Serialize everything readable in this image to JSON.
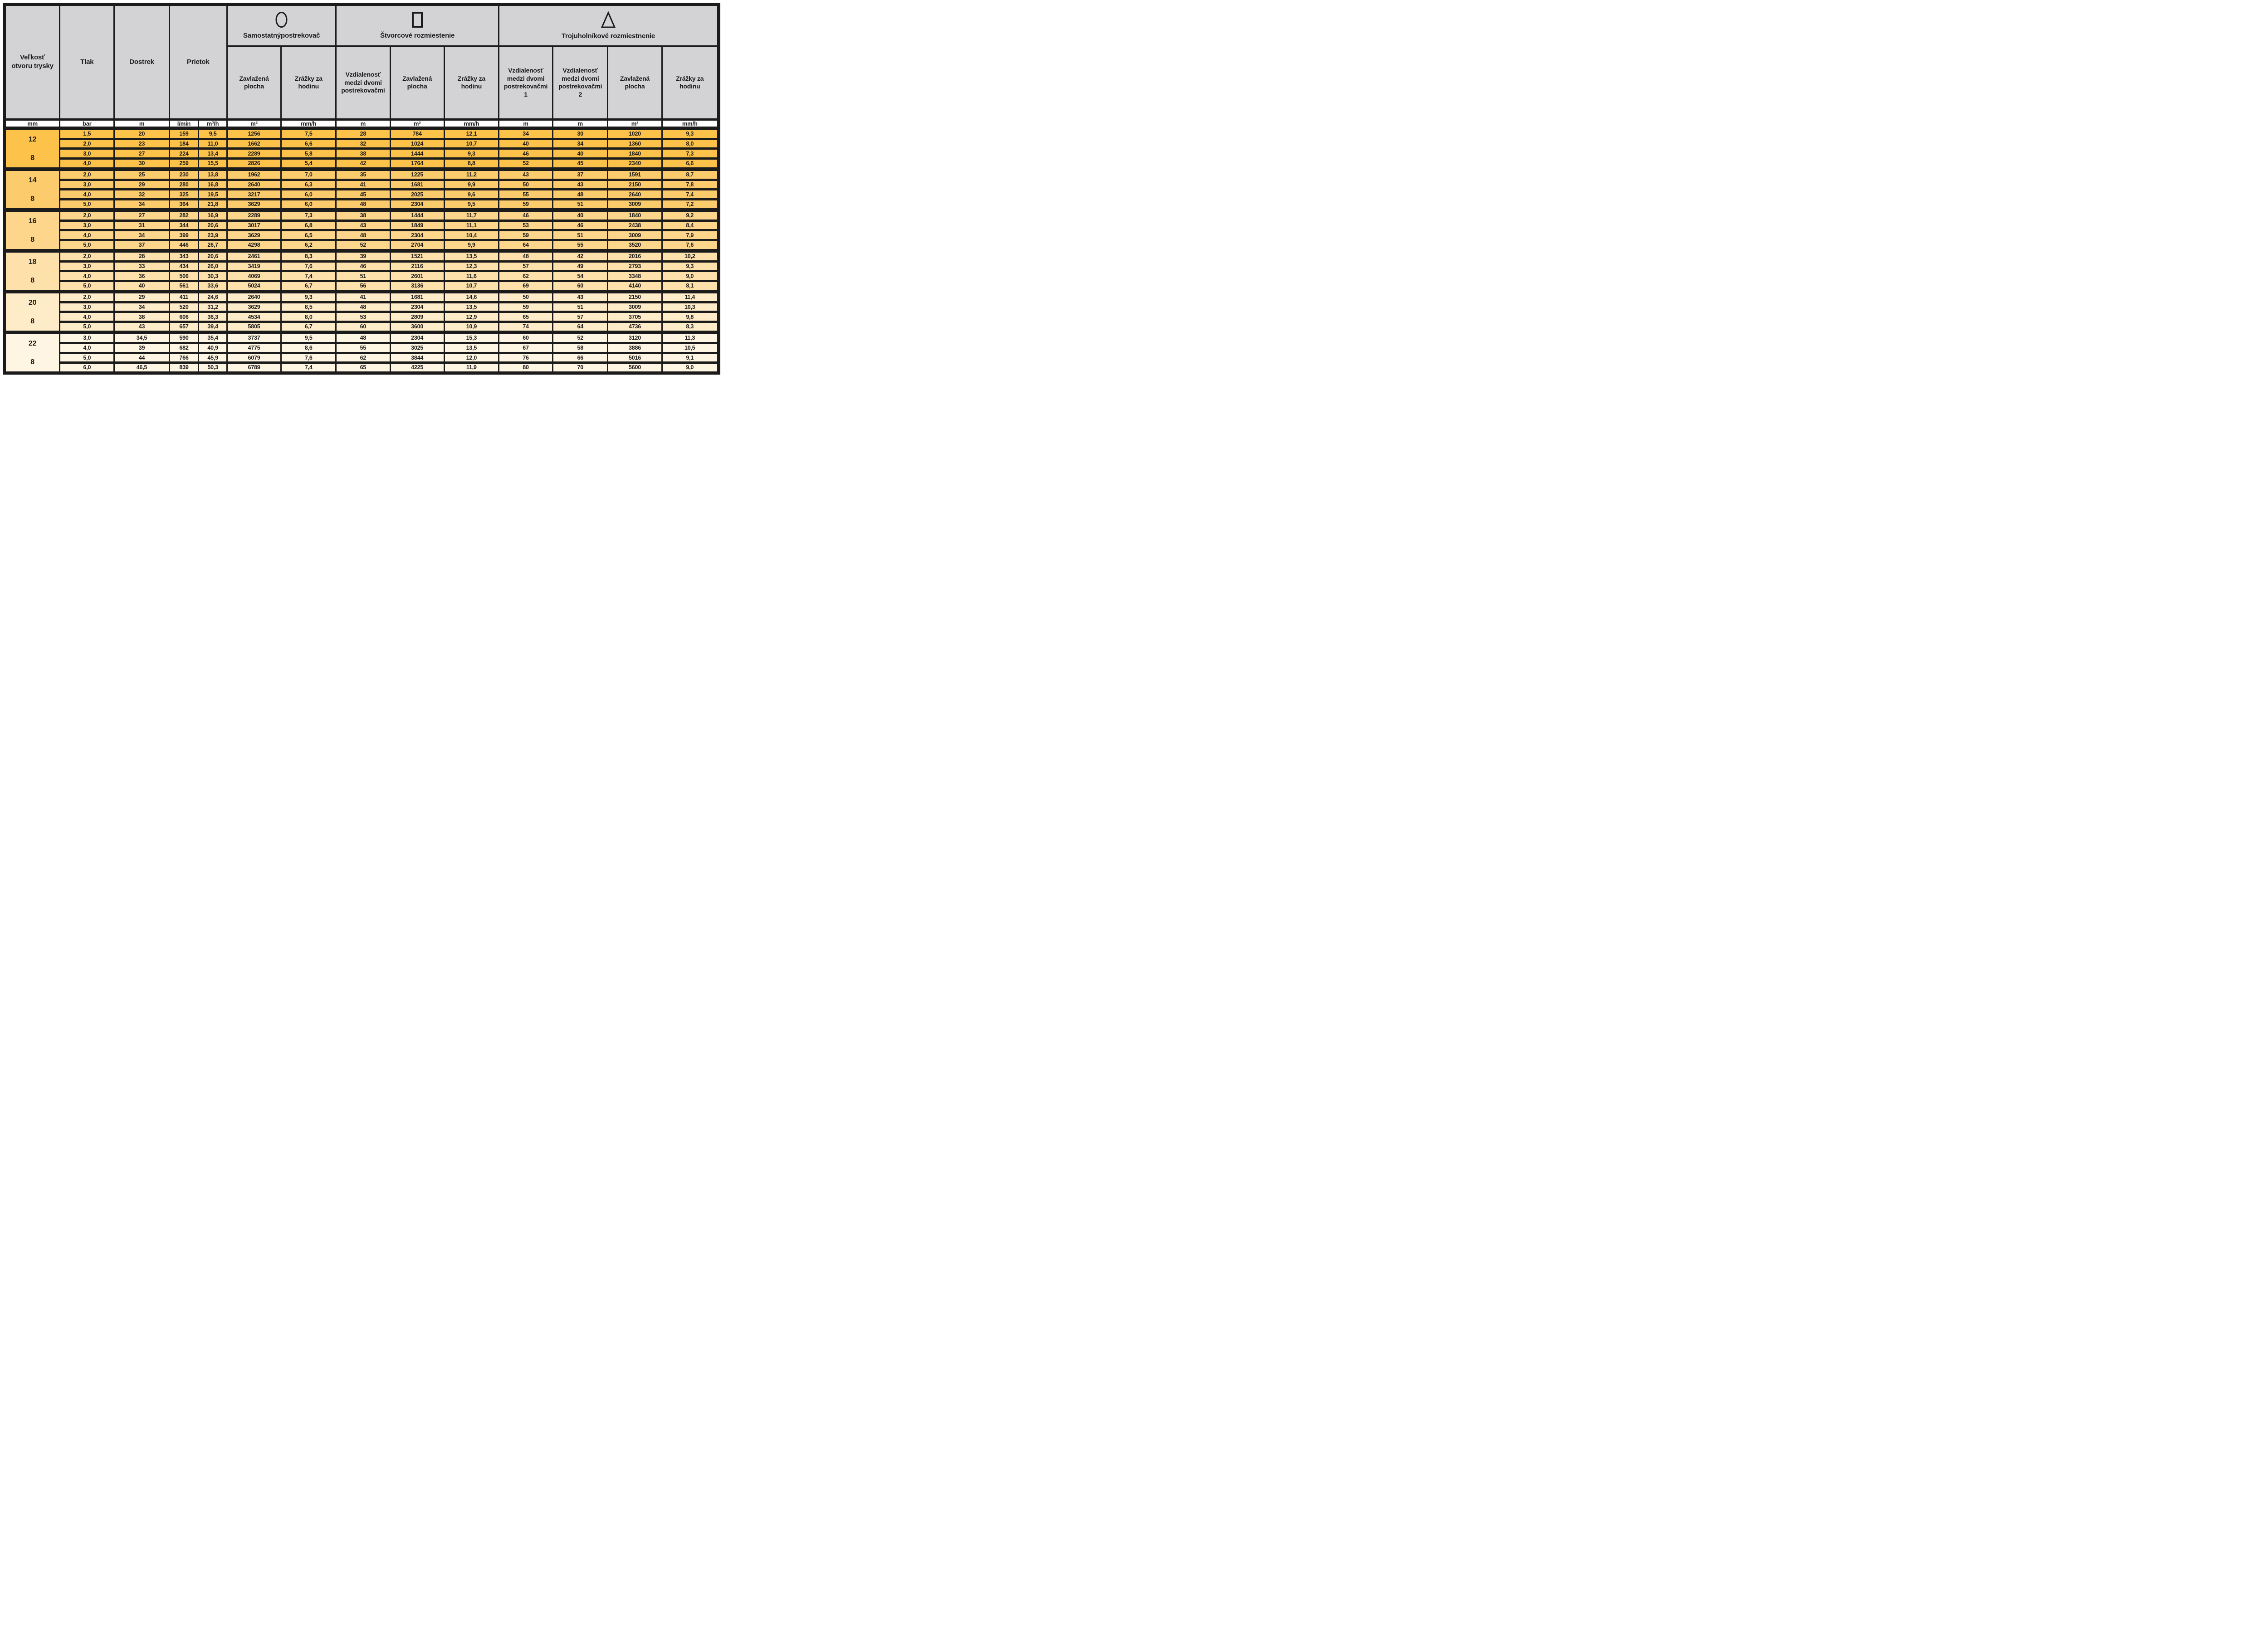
{
  "colors": {
    "ink": "#1b1b1b",
    "header_bg": "#d3d3d5",
    "units_bg": "#ffffff"
  },
  "table": {
    "header": {
      "size": "Veľkosť otvoru trysky",
      "pressure": "Tlak",
      "range": "Dostrek",
      "flow": "Prietok"
    },
    "group_headers": [
      {
        "icon": "circle-icon",
        "title": "Samostatnýpostrekovač"
      },
      {
        "icon": "square-icon",
        "title": "Štvorcové rozmiestenie"
      },
      {
        "icon": "triangle-icon",
        "title": "Trojuholníkové rozmiestnenie"
      }
    ],
    "subheaders": [
      "Zavlažená plocha",
      "Zrážky za hodinu",
      "Vzdialenosť medzi dvomi postrekovačmi",
      "Zavlažená plocha",
      "Zrážky za hodinu",
      "Vzdialenosť medzi dvomi postrekovačmi 1",
      "Vzdialenosť medzi dvomi postrekovačmi 2",
      "Zavlažená plocha",
      "Zrážky za hodinu"
    ],
    "units": [
      "mm",
      "bar",
      "m",
      "l/min",
      "m³/h",
      "m²",
      "mm/h",
      "m",
      "m²",
      "mm/h",
      "m",
      "m",
      "m²",
      "mm/h"
    ],
    "column_keys": [
      "pressure",
      "range",
      "flow-lmin",
      "flow-m3h",
      "single-area",
      "single-precip",
      "square-distance",
      "square-area",
      "square-precip",
      "tri-distance-1",
      "tri-distance-2",
      "tri-area",
      "tri-precip"
    ],
    "groups": [
      {
        "size": "12",
        "size2": "8",
        "color": "#fcc24a",
        "rows": [
          [
            "1,5",
            "20",
            "159",
            "9,5",
            "1256",
            "7,5",
            "28",
            "784",
            "12,1",
            "34",
            "30",
            "1020",
            "9,3"
          ],
          [
            "2,0",
            "23",
            "184",
            "11,0",
            "1662",
            "6,6",
            "32",
            "1024",
            "10,7",
            "40",
            "34",
            "1360",
            "8,0"
          ],
          [
            "3,0",
            "27",
            "224",
            "13,4",
            "2289",
            "5,8",
            "38",
            "1444",
            "9,3",
            "46",
            "40",
            "1840",
            "7,3"
          ],
          [
            "4,0",
            "30",
            "259",
            "15,5",
            "2826",
            "5,4",
            "42",
            "1764",
            "8,8",
            "52",
            "45",
            "2340",
            "6,6"
          ]
        ]
      },
      {
        "size": "14",
        "size2": "8",
        "color": "#fccb6b",
        "rows": [
          [
            "2,0",
            "25",
            "230",
            "13,8",
            "1962",
            "7,0",
            "35",
            "1225",
            "11,2",
            "43",
            "37",
            "1591",
            "8,7"
          ],
          [
            "3,0",
            "29",
            "280",
            "16,8",
            "2640",
            "6,3",
            "41",
            "1681",
            "9,9",
            "50",
            "43",
            "2150",
            "7,8"
          ],
          [
            "4,0",
            "32",
            "325",
            "19,5",
            "3217",
            "6,0",
            "45",
            "2025",
            "9,6",
            "55",
            "48",
            "2640",
            "7,4"
          ],
          [
            "5,0",
            "34",
            "364",
            "21,8",
            "3629",
            "6,0",
            "48",
            "2304",
            "9,5",
            "59",
            "51",
            "3009",
            "7,2"
          ]
        ]
      },
      {
        "size": "16",
        "size2": "8",
        "color": "#fdd68c",
        "rows": [
          [
            "2,0",
            "27",
            "282",
            "16,9",
            "2289",
            "7,3",
            "38",
            "1444",
            "11,7",
            "46",
            "40",
            "1840",
            "9,2"
          ],
          [
            "3,0",
            "31",
            "344",
            "20,6",
            "3017",
            "6,8",
            "43",
            "1849",
            "11,1",
            "53",
            "46",
            "2438",
            "8,4"
          ],
          [
            "4,0",
            "34",
            "399",
            "23,9",
            "3629",
            "6,5",
            "48",
            "2304",
            "10,4",
            "59",
            "51",
            "3009",
            "7,9"
          ],
          [
            "5,0",
            "37",
            "446",
            "26,7",
            "4298",
            "6,2",
            "52",
            "2704",
            "9,9",
            "64",
            "55",
            "3520",
            "7,6"
          ]
        ]
      },
      {
        "size": "18",
        "size2": "8",
        "color": "#fee0aa",
        "rows": [
          [
            "2,0",
            "28",
            "343",
            "20,6",
            "2461",
            "8,3",
            "39",
            "1521",
            "13,5",
            "48",
            "42",
            "2016",
            "10,2"
          ],
          [
            "3,0",
            "33",
            "434",
            "26,0",
            "3419",
            "7,6",
            "46",
            "2116",
            "12,3",
            "57",
            "49",
            "2793",
            "9,3"
          ],
          [
            "4,0",
            "36",
            "506",
            "30,3",
            "4069",
            "7,4",
            "51",
            "2601",
            "11,6",
            "62",
            "54",
            "3348",
            "9,0"
          ],
          [
            "5,0",
            "40",
            "561",
            "33,6",
            "5024",
            "6,7",
            "56",
            "3136",
            "10,7",
            "69",
            "60",
            "4140",
            "8,1"
          ]
        ]
      },
      {
        "size": "20",
        "size2": "8",
        "color": "#feecc8",
        "rows": [
          [
            "2,0",
            "29",
            "411",
            "24,6",
            "2640",
            "9,3",
            "41",
            "1681",
            "14,6",
            "50",
            "43",
            "2150",
            "11,4"
          ],
          [
            "3,0",
            "34",
            "520",
            "31,2",
            "3629",
            "8,5",
            "48",
            "2304",
            "13,5",
            "59",
            "51",
            "3009",
            "10,3"
          ],
          [
            "4,0",
            "38",
            "606",
            "36,3",
            "4534",
            "8,0",
            "53",
            "2809",
            "12,9",
            "65",
            "57",
            "3705",
            "9,8"
          ],
          [
            "5,0",
            "43",
            "657",
            "39,4",
            "5805",
            "6,7",
            "60",
            "3600",
            "10,9",
            "74",
            "64",
            "4736",
            "8,3"
          ]
        ]
      },
      {
        "size": "22",
        "size2": "8",
        "color": "#fef5e2",
        "rows": [
          [
            "3,0",
            "34,5",
            "590",
            "35,4",
            "3737",
            "9,5",
            "48",
            "2304",
            "15,3",
            "60",
            "52",
            "3120",
            "11,3"
          ],
          [
            "4,0",
            "39",
            "682",
            "40,9",
            "4775",
            "8,6",
            "55",
            "3025",
            "13,5",
            "67",
            "58",
            "3886",
            "10,5"
          ],
          [
            "5,0",
            "44",
            "766",
            "45,9",
            "6079",
            "7,6",
            "62",
            "3844",
            "12,0",
            "76",
            "66",
            "5016",
            "9,1"
          ],
          [
            "6,0",
            "46,5",
            "839",
            "50,3",
            "6789",
            "7,4",
            "65",
            "4225",
            "11,9",
            "80",
            "70",
            "5600",
            "9,0"
          ]
        ]
      }
    ]
  }
}
